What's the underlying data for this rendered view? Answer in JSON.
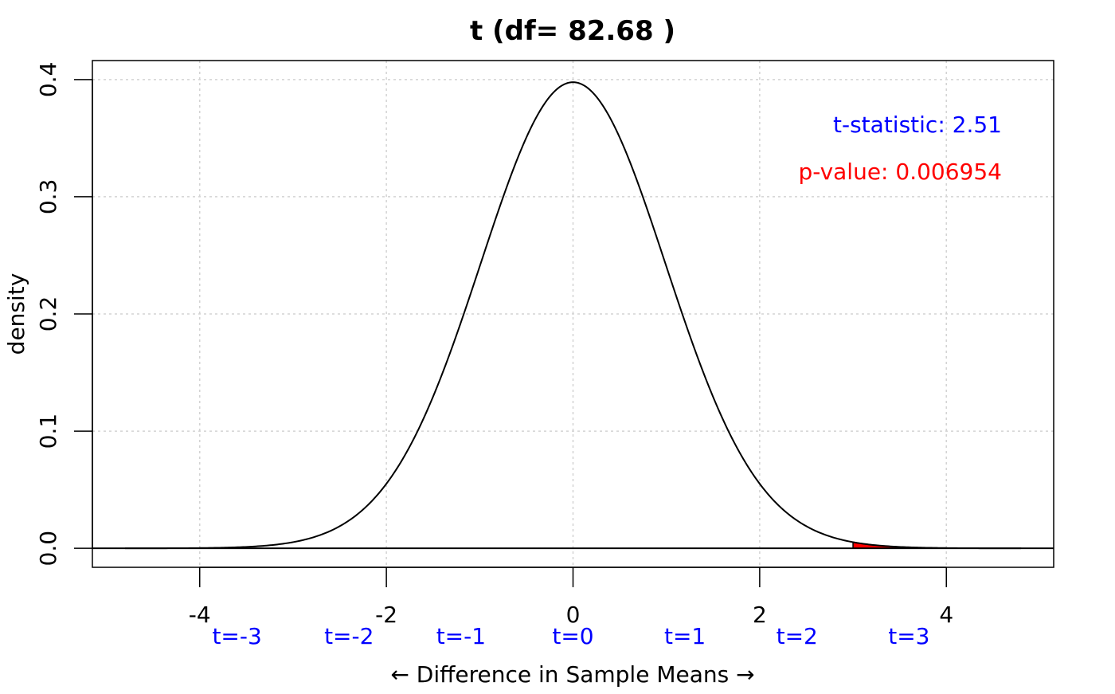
{
  "chart_data": {
    "type": "area",
    "title": "t (df= 82.68 )",
    "xlabel": "← Difference in Sample Means →",
    "ylabel": "density",
    "xlim": [
      -5.15,
      5.15
    ],
    "ylim": [
      -0.0162,
      0.4162
    ],
    "x_ticks": [
      -4,
      -2,
      0,
      2,
      4
    ],
    "x_tick_labels": [
      "-4",
      "-2",
      "0",
      "2",
      "4"
    ],
    "y_ticks": [
      0.0,
      0.1,
      0.2,
      0.3,
      0.4
    ],
    "y_tick_labels": [
      "0.0",
      "0.1",
      "0.2",
      "0.3",
      "0.4"
    ],
    "grid": true,
    "df": 82.68,
    "curve_range": [
      -4.8,
      4.8
    ],
    "shaded_tail_from": 3.0,
    "colors": {
      "curve": "#000000",
      "shade": "#ff0000",
      "grid": "#d3d3d3",
      "t_labels": "#0000ff",
      "statistic": "#0000ff",
      "p_value": "#ff0000"
    },
    "t_labels": [
      {
        "x": -3.6,
        "label": "t=-3"
      },
      {
        "x": -2.4,
        "label": "t=-2"
      },
      {
        "x": -1.2,
        "label": "t=-1"
      },
      {
        "x": 0.0,
        "label": "t=0"
      },
      {
        "x": 1.2,
        "label": "t=1"
      },
      {
        "x": 2.4,
        "label": "t=2"
      },
      {
        "x": 3.6,
        "label": "t=3"
      }
    ],
    "annotations": {
      "statistic": "t-statistic: 2.51",
      "p_value": "p-value: 0.006954"
    }
  }
}
